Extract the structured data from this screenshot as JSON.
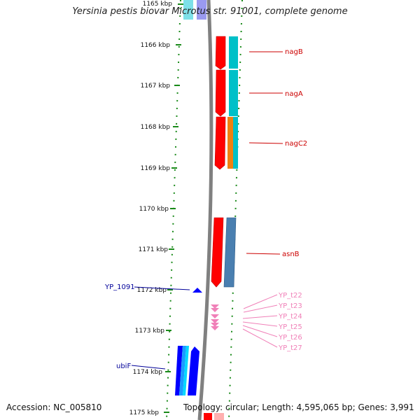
{
  "title": "Yersinia pestis biovar Microtus str. 91001, complete genome",
  "accession": "Accession: NC_005810",
  "summary": "Topology: circular; Length: 4,595,065 bp; Genes: 3,991",
  "colors": {
    "tick": "#1a8a1a",
    "backbone": "#808080",
    "red_gene": "#ff0000",
    "cyan_gene": "#00c0c8",
    "orange_gene": "#f08010",
    "steel_gene": "#4a7fb0",
    "blue_gene": "#0000ff",
    "pink_gene": "#f080b8",
    "label_red": "#cc0000",
    "label_blue": "#000099",
    "label_pink": "#f080b8"
  },
  "ruler": {
    "labels": [
      "1165 kbp",
      "1166 kbp",
      "1167 kbp",
      "1168 kbp",
      "1169 kbp",
      "1170 kbp",
      "1171 kbp",
      "1172 kbp",
      "1173 kbp",
      "1174 kbp",
      "1175 kbp"
    ]
  },
  "genes": {
    "right": [
      {
        "name": "nagB",
        "start": 1165.8,
        "end": 1166.6,
        "strand": "+",
        "color": "red"
      },
      {
        "name": "nagA",
        "start": 1166.6,
        "end": 1167.7,
        "strand": "+",
        "color": "red"
      },
      {
        "name": "nagC2",
        "start": 1167.7,
        "end": 1168.7,
        "strand": "+",
        "color": "red"
      },
      {
        "name": "asnB",
        "start": 1170.2,
        "end": 1171.9,
        "strand": "+",
        "color": "red"
      }
    ],
    "left": [
      {
        "name": "YP_1091",
        "start": 1172.0,
        "end": 1172.12,
        "strand": "-",
        "color": "blue"
      },
      {
        "name": "ubiF",
        "start": 1173.35,
        "end": 1174.55,
        "strand": "-",
        "color": "blue"
      }
    ],
    "trna": [
      "YP_t22",
      "YP_t23",
      "YP_t24",
      "YP_t25",
      "YP_t26",
      "YP_t27"
    ]
  }
}
